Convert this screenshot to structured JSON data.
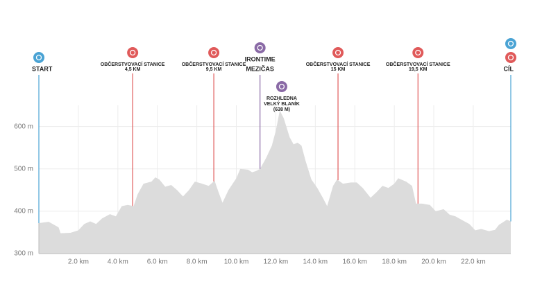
{
  "chart_data": {
    "type": "area",
    "color": "#dcdcdc",
    "grid": true,
    "x": [
      0,
      0.5,
      1.0,
      1.1,
      1.6,
      1.8,
      2.0,
      2.3,
      2.6,
      2.9,
      3.2,
      3.6,
      3.9,
      4.2,
      4.5,
      4.8,
      5.0,
      5.3,
      5.7,
      5.9,
      6.1,
      6.4,
      6.7,
      7.0,
      7.3,
      7.6,
      7.9,
      8.2,
      8.6,
      8.9,
      9.1,
      9.3,
      9.6,
      10.0,
      10.2,
      10.6,
      10.8,
      11.0,
      11.2,
      11.5,
      11.8,
      12.0,
      12.2,
      12.4,
      12.7,
      12.9,
      13.1,
      13.3,
      13.5,
      13.8,
      14.1,
      14.4,
      14.6,
      14.9,
      15.1,
      15.4,
      15.8,
      16.1,
      16.4,
      16.8,
      17.1,
      17.4,
      17.7,
      18.0,
      18.2,
      18.6,
      18.9,
      19.1,
      19.4,
      19.8,
      20.1,
      20.5,
      20.8,
      21.1,
      21.4,
      21.8,
      22.1,
      22.4,
      22.8,
      23.1,
      23.3,
      23.7,
      23.9
    ],
    "values": [
      372,
      375,
      362,
      348,
      349,
      352,
      355,
      370,
      376,
      370,
      383,
      393,
      388,
      412,
      415,
      412,
      440,
      465,
      470,
      480,
      475,
      458,
      462,
      450,
      435,
      450,
      470,
      466,
      460,
      472,
      445,
      420,
      450,
      478,
      500,
      498,
      492,
      495,
      500,
      525,
      555,
      590,
      638,
      620,
      575,
      558,
      562,
      555,
      520,
      475,
      455,
      430,
      412,
      460,
      475,
      465,
      468,
      468,
      455,
      432,
      445,
      460,
      455,
      465,
      478,
      470,
      460,
      418,
      418,
      415,
      400,
      405,
      392,
      388,
      380,
      370,
      355,
      358,
      353,
      356,
      368,
      380,
      376
    ],
    "xlim": [
      0,
      23.9
    ],
    "ylim": [
      300,
      660
    ],
    "xticks": [
      {
        "value": 2,
        "label": "2.0 km"
      },
      {
        "value": 4,
        "label": "4.0 km"
      },
      {
        "value": 6,
        "label": "6.0 km"
      },
      {
        "value": 8,
        "label": "8.0 km"
      },
      {
        "value": 10,
        "label": "10.0 km"
      },
      {
        "value": 12,
        "label": "12.0 km"
      },
      {
        "value": 14,
        "label": "14.0 km"
      },
      {
        "value": 16,
        "label": "16.0 km"
      },
      {
        "value": 18,
        "label": "18.0 km"
      },
      {
        "value": 20,
        "label": "20.0 km"
      },
      {
        "value": 22,
        "label": "22.0 km"
      }
    ],
    "yticks": [
      {
        "value": 300,
        "label": "300 m"
      },
      {
        "value": 400,
        "label": "400 m"
      },
      {
        "value": 500,
        "label": "500 m"
      },
      {
        "value": 600,
        "label": "600 m"
      }
    ],
    "markers": [
      {
        "kind": "start",
        "x": 0,
        "color": "#4aa3d4",
        "lines": [
          "START"
        ]
      },
      {
        "kind": "station",
        "x": 4.75,
        "color": "#e05a5a",
        "lines": [
          "OBČERSTVOVACÍ STANICE",
          "4,5 KM"
        ]
      },
      {
        "kind": "station",
        "x": 8.86,
        "color": "#e05a5a",
        "lines": [
          "OBČERSTVOVACÍ STANICE",
          "9,5 KM"
        ]
      },
      {
        "kind": "split",
        "x": 11.2,
        "color": "#8a6aa6",
        "lines": [
          "IRONTIME",
          "MEZIČAS"
        ]
      },
      {
        "kind": "peak",
        "x": 12.3,
        "color": "#8a6aa6",
        "lines": [
          "ROZHLEDNA",
          "VELKÝ BLANÍK",
          "(638 M)"
        ]
      },
      {
        "kind": "station",
        "x": 15.15,
        "color": "#e05a5a",
        "lines": [
          "OBČERSTVOVACÍ STANICE",
          "15 KM"
        ]
      },
      {
        "kind": "station",
        "x": 19.2,
        "color": "#e05a5a",
        "lines": [
          "OBČERSTVOVACÍ STANICE",
          "19,5 KM"
        ]
      },
      {
        "kind": "finish",
        "x": 23.9,
        "color": "#4aa3d4",
        "lines": [
          "CÍL"
        ]
      }
    ]
  }
}
